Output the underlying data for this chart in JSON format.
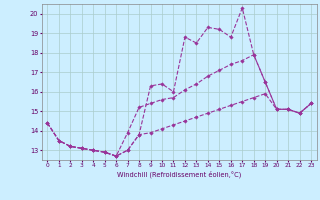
{
  "xlabel": "Windchill (Refroidissement éolien,°C)",
  "background_color": "#cceeff",
  "line_color": "#993399",
  "grid_color": "#aacccc",
  "ylim": [
    12.5,
    20.5
  ],
  "xlim": [
    -0.5,
    23.5
  ],
  "yticks": [
    13,
    14,
    15,
    16,
    17,
    18,
    19,
    20
  ],
  "xticks": [
    0,
    1,
    2,
    3,
    4,
    5,
    6,
    7,
    8,
    9,
    10,
    11,
    12,
    13,
    14,
    15,
    16,
    17,
    18,
    19,
    20,
    21,
    22,
    23
  ],
  "series1_x": [
    0,
    1,
    2,
    3,
    4,
    5,
    6,
    7,
    8,
    9,
    10,
    11,
    12,
    13,
    14,
    15,
    16,
    17,
    18,
    19,
    20,
    21,
    22,
    23
  ],
  "series1_y": [
    14.4,
    13.5,
    13.2,
    13.1,
    13.0,
    12.9,
    12.7,
    13.0,
    13.8,
    16.3,
    16.4,
    16.0,
    18.8,
    18.5,
    19.3,
    19.2,
    18.8,
    20.3,
    17.9,
    16.5,
    15.1,
    15.1,
    14.9,
    15.4
  ],
  "series2_x": [
    0,
    1,
    2,
    3,
    4,
    5,
    6,
    7,
    8,
    9,
    10,
    11,
    12,
    13,
    14,
    15,
    16,
    17,
    18,
    19,
    20,
    21,
    22,
    23
  ],
  "series2_y": [
    14.4,
    13.5,
    13.2,
    13.1,
    13.0,
    12.9,
    12.7,
    13.9,
    15.2,
    15.4,
    15.6,
    15.7,
    16.1,
    16.4,
    16.8,
    17.1,
    17.4,
    17.6,
    17.9,
    16.5,
    15.1,
    15.1,
    14.9,
    15.4
  ],
  "series3_x": [
    0,
    1,
    2,
    3,
    4,
    5,
    6,
    7,
    8,
    9,
    10,
    11,
    12,
    13,
    14,
    15,
    16,
    17,
    18,
    19,
    20,
    21,
    22,
    23
  ],
  "series3_y": [
    14.4,
    13.5,
    13.2,
    13.1,
    13.0,
    12.9,
    12.7,
    13.0,
    13.8,
    13.9,
    14.1,
    14.3,
    14.5,
    14.7,
    14.9,
    15.1,
    15.3,
    15.5,
    15.7,
    15.9,
    15.1,
    15.1,
    14.9,
    15.4
  ]
}
